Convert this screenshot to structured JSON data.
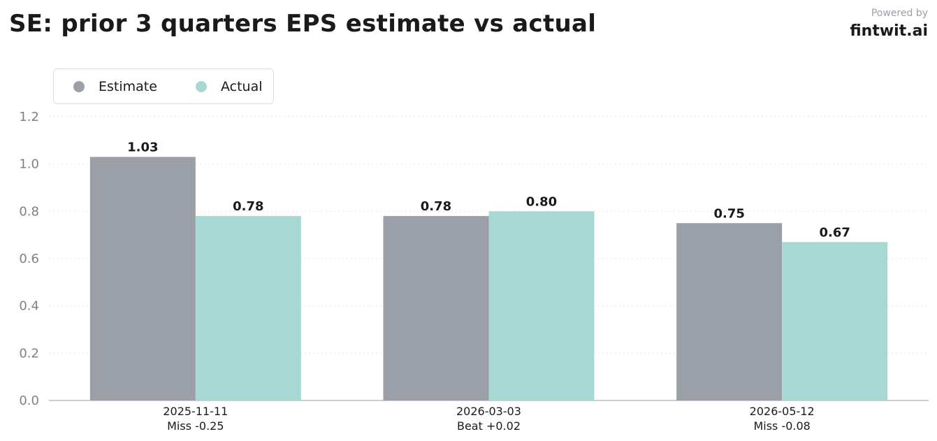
{
  "header": {
    "title": "SE: prior 3 quarters EPS estimate vs actual",
    "powered_by": "Powered by",
    "brand": "fintwit.ai"
  },
  "legend": {
    "items": [
      {
        "label": "Estimate",
        "color": "#9b9fa7"
      },
      {
        "label": "Actual",
        "color": "#a8d8d4"
      }
    ]
  },
  "chart_data": {
    "type": "bar",
    "title": "SE: prior 3 quarters EPS estimate vs actual",
    "categories": [
      "2025-11-11",
      "2026-03-03",
      "2026-05-12"
    ],
    "category_notes": [
      "Miss -0.25",
      "Beat +0.02",
      "Miss -0.08"
    ],
    "series": [
      {
        "name": "Estimate",
        "color": "#9b9fa7",
        "values": [
          1.03,
          0.78,
          0.75
        ]
      },
      {
        "name": "Actual",
        "color": "#a8d8d4",
        "values": [
          0.78,
          0.8,
          0.67
        ]
      }
    ],
    "value_labels": [
      [
        "1.03",
        "0.78",
        "0.75"
      ],
      [
        "0.78",
        "0.80",
        "0.67"
      ]
    ],
    "xlabel": "",
    "ylabel": "",
    "ylim": [
      0,
      1.2
    ],
    "yticks": [
      "0.0",
      "0.2",
      "0.4",
      "0.6",
      "0.8",
      "1.0",
      "1.2"
    ],
    "grid": true,
    "legend_position": "top-left"
  }
}
